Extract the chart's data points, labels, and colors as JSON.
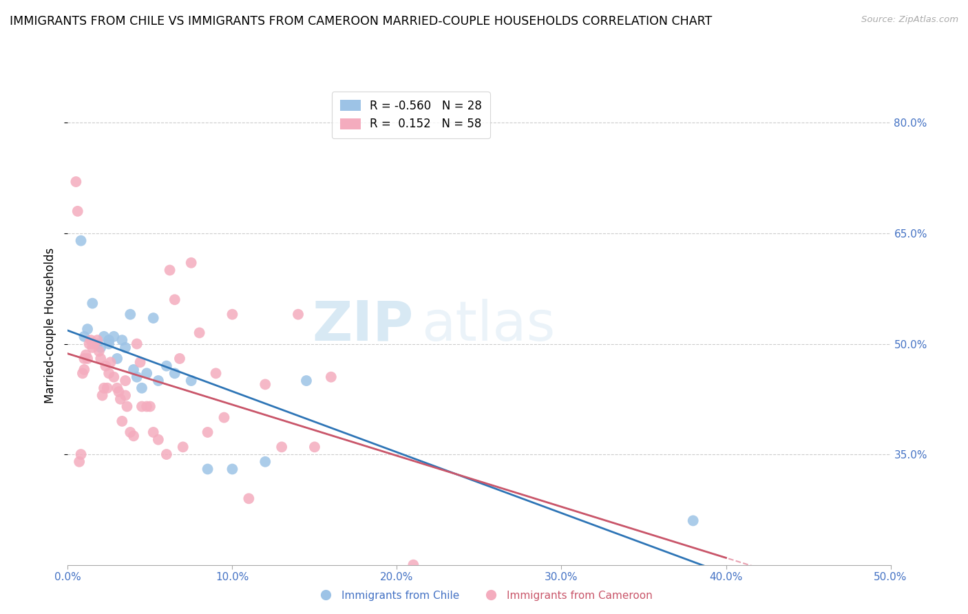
{
  "title": "IMMIGRANTS FROM CHILE VS IMMIGRANTS FROM CAMEROON MARRIED-COUPLE HOUSEHOLDS CORRELATION CHART",
  "source": "Source: ZipAtlas.com",
  "ylabel": "Married-couple Households",
  "xlabel_ticks": [
    "0.0%",
    "10.0%",
    "20.0%",
    "30.0%",
    "40.0%",
    "50.0%"
  ],
  "xlabel_vals": [
    0.0,
    0.1,
    0.2,
    0.3,
    0.4,
    0.5
  ],
  "ylabel_ticks": [
    "80.0%",
    "65.0%",
    "50.0%",
    "35.0%"
  ],
  "ylabel_vals": [
    0.8,
    0.65,
    0.5,
    0.35
  ],
  "xlim": [
    0.0,
    0.5
  ],
  "ylim": [
    0.2,
    0.85
  ],
  "chile_color": "#9DC3E6",
  "cameroon_color": "#F4ACBE",
  "chile_line_color": "#2E75B6",
  "cameroon_line_color": "#C9566A",
  "cameroon_dashed_color": "#E8A0B0",
  "watermark_zip": "ZIP",
  "watermark_atlas": "atlas",
  "chile_x": [
    0.008,
    0.01,
    0.012,
    0.015,
    0.018,
    0.02,
    0.022,
    0.025,
    0.025,
    0.028,
    0.03,
    0.033,
    0.035,
    0.038,
    0.04,
    0.042,
    0.045,
    0.048,
    0.052,
    0.055,
    0.06,
    0.065,
    0.075,
    0.085,
    0.1,
    0.12,
    0.145,
    0.38
  ],
  "chile_y": [
    0.64,
    0.51,
    0.52,
    0.555,
    0.5,
    0.495,
    0.51,
    0.505,
    0.5,
    0.51,
    0.48,
    0.505,
    0.495,
    0.54,
    0.465,
    0.455,
    0.44,
    0.46,
    0.535,
    0.45,
    0.47,
    0.46,
    0.45,
    0.33,
    0.33,
    0.34,
    0.45,
    0.26
  ],
  "cameroon_x": [
    0.005,
    0.006,
    0.007,
    0.008,
    0.009,
    0.01,
    0.01,
    0.011,
    0.012,
    0.013,
    0.014,
    0.015,
    0.015,
    0.016,
    0.018,
    0.019,
    0.02,
    0.021,
    0.022,
    0.023,
    0.024,
    0.025,
    0.026,
    0.028,
    0.03,
    0.031,
    0.032,
    0.033,
    0.035,
    0.035,
    0.036,
    0.038,
    0.04,
    0.042,
    0.044,
    0.045,
    0.048,
    0.05,
    0.052,
    0.055,
    0.06,
    0.062,
    0.065,
    0.068,
    0.07,
    0.075,
    0.08,
    0.085,
    0.09,
    0.095,
    0.1,
    0.11,
    0.12,
    0.13,
    0.14,
    0.15,
    0.16,
    0.21
  ],
  "cameroon_y": [
    0.72,
    0.68,
    0.34,
    0.35,
    0.46,
    0.465,
    0.48,
    0.485,
    0.48,
    0.5,
    0.505,
    0.495,
    0.5,
    0.5,
    0.505,
    0.49,
    0.48,
    0.43,
    0.44,
    0.47,
    0.44,
    0.46,
    0.475,
    0.455,
    0.44,
    0.435,
    0.425,
    0.395,
    0.43,
    0.45,
    0.415,
    0.38,
    0.375,
    0.5,
    0.475,
    0.415,
    0.415,
    0.415,
    0.38,
    0.37,
    0.35,
    0.6,
    0.56,
    0.48,
    0.36,
    0.61,
    0.515,
    0.38,
    0.46,
    0.4,
    0.54,
    0.29,
    0.445,
    0.36,
    0.54,
    0.36,
    0.455,
    0.2
  ]
}
